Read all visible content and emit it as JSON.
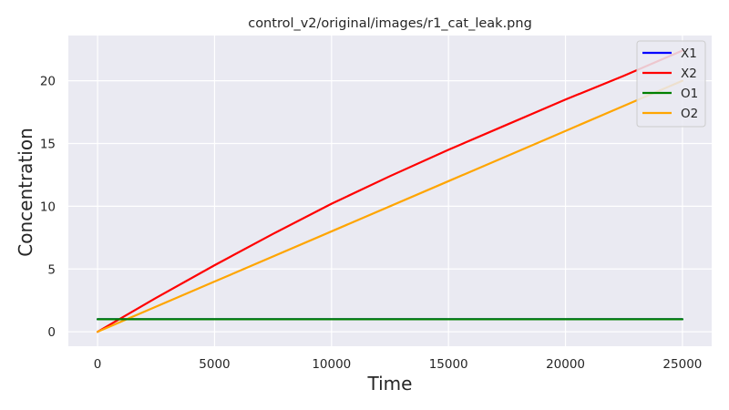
{
  "chart_data": {
    "type": "line",
    "title": "control_v2/original/images/r1_cat_leak.png",
    "xlabel": "Time",
    "ylabel": "Concentration",
    "xlim": [
      -1250,
      26250
    ],
    "ylim": [
      -1.15,
      23.6
    ],
    "xticks": [
      0,
      5000,
      10000,
      15000,
      20000,
      25000
    ],
    "yticks": [
      0,
      5,
      10,
      15,
      20
    ],
    "xtick_labels": [
      "0",
      "5000",
      "10000",
      "15000",
      "20000",
      "25000"
    ],
    "ytick_labels": [
      "0",
      "5",
      "10",
      "15",
      "20"
    ],
    "grid": true,
    "legend_position": "top-right",
    "series": [
      {
        "name": "X1",
        "color": "#0000ff",
        "x": [
          0,
          25000
        ],
        "y": [
          1,
          1
        ]
      },
      {
        "name": "X2",
        "color": "#ff0000",
        "x": [
          0,
          2500,
          5000,
          7500,
          10000,
          12500,
          15000,
          17500,
          20000,
          22500,
          25000
        ],
        "y": [
          0,
          2.7,
          5.3,
          7.8,
          10.2,
          12.4,
          14.5,
          16.5,
          18.5,
          20.4,
          22.4
        ]
      },
      {
        "name": "O1",
        "color": "#008000",
        "x": [
          0,
          25000
        ],
        "y": [
          1,
          1
        ]
      },
      {
        "name": "O2",
        "color": "#ffa500",
        "x": [
          0,
          5000,
          10000,
          15000,
          20000,
          25000
        ],
        "y": [
          0,
          4.0,
          8.0,
          12.0,
          16.0,
          20.0
        ]
      }
    ]
  }
}
